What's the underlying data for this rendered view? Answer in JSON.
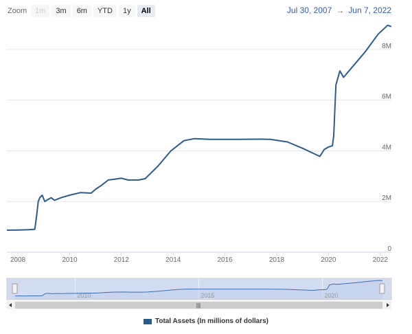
{
  "range_selector": {
    "zoom_label": "Zoom",
    "buttons": [
      "1m",
      "3m",
      "6m",
      "YTD",
      "1y",
      "All"
    ],
    "active": "All",
    "disabled": [
      "1m"
    ],
    "from": "Jul 30, 2007",
    "arrow": "→",
    "to": "Jun 7, 2022"
  },
  "navigator": {
    "tick_labels": [
      "2010",
      "2015",
      "2020"
    ],
    "handle_glyph": "|||"
  },
  "colors": {
    "series": "#2b5b8a",
    "navigator_fill": "#d3dbf0",
    "navigator_line": "#3a6fb0",
    "grid": "#e6e6e6"
  },
  "chart_data": {
    "type": "line",
    "title": "",
    "xlabel": "",
    "ylabel": "",
    "x_ticks": [
      "2008",
      "2010",
      "2012",
      "2014",
      "2016",
      "2018",
      "2020",
      "2022"
    ],
    "y_ticks": [
      "0",
      "2M",
      "4M",
      "6M",
      "8M"
    ],
    "xlim": [
      "2007-07-30",
      "2022-06-07"
    ],
    "ylim": [
      0,
      9000000
    ],
    "grid": true,
    "legend_position": "bottom",
    "series": [
      {
        "name": "Total Assets (In millions of dollars)",
        "x": [
          "2007-07-30",
          "2008-01-01",
          "2008-06-01",
          "2008-08-27",
          "2008-09-24",
          "2008-10-15",
          "2008-11-05",
          "2008-12-10",
          "2009-01-15",
          "2009-03-01",
          "2009-04-15",
          "2009-06-01",
          "2009-09-01",
          "2010-01-01",
          "2010-06-01",
          "2010-11-01",
          "2011-01-01",
          "2011-04-01",
          "2011-06-30",
          "2011-09-01",
          "2012-01-01",
          "2012-04-01",
          "2012-06-01",
          "2012-09-01",
          "2012-12-01",
          "2013-06-01",
          "2013-12-01",
          "2014-06-01",
          "2014-10-29",
          "2015-06-01",
          "2016-06-01",
          "2017-06-01",
          "2017-10-01",
          "2018-06-01",
          "2019-01-01",
          "2019-06-01",
          "2019-09-01",
          "2019-11-01",
          "2020-01-01",
          "2020-02-26",
          "2020-03-15",
          "2020-04-15",
          "2020-06-10",
          "2020-08-01",
          "2020-12-01",
          "2021-06-01",
          "2021-12-01",
          "2022-04-15",
          "2022-06-07"
        ],
        "values": [
          870000,
          875000,
          890000,
          905000,
          1500000,
          2000000,
          2150000,
          2250000,
          2000000,
          2080000,
          2150000,
          2050000,
          2150000,
          2250000,
          2350000,
          2330000,
          2480000,
          2650000,
          2850000,
          2870000,
          2920000,
          2850000,
          2850000,
          2850000,
          2900000,
          3400000,
          4000000,
          4400000,
          4480000,
          4450000,
          4450000,
          4460000,
          4450000,
          4350000,
          4100000,
          3900000,
          3780000,
          4050000,
          4150000,
          4200000,
          4600000,
          6600000,
          7150000,
          6900000,
          7300000,
          7900000,
          8600000,
          8950000,
          8900000
        ]
      }
    ]
  }
}
